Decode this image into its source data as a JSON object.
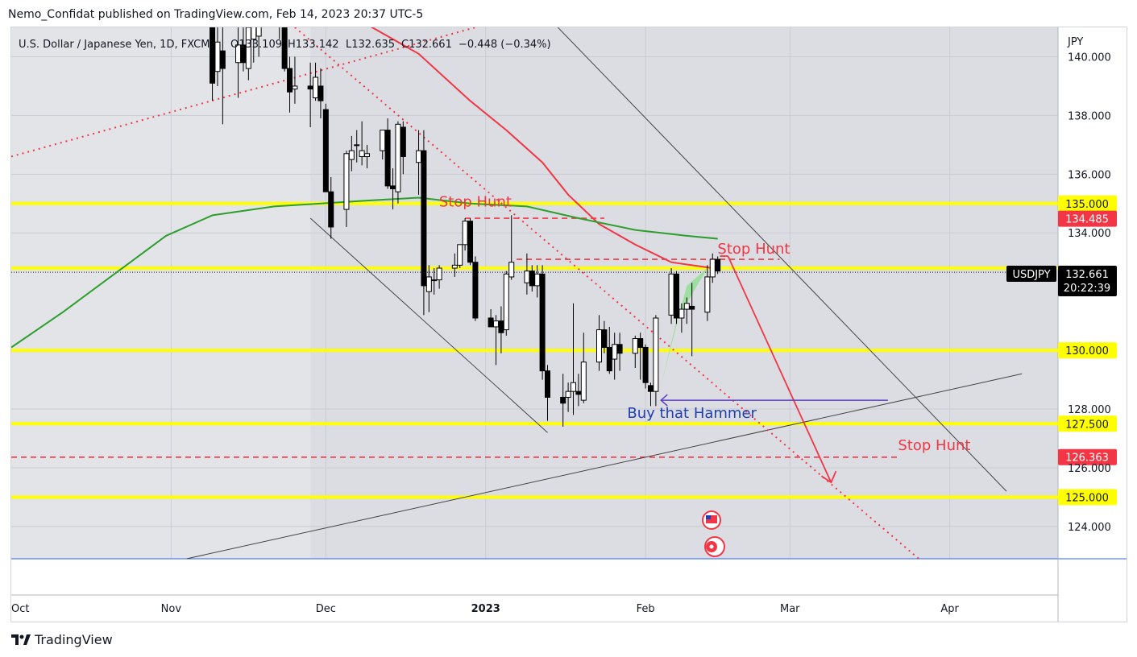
{
  "header": {
    "text": "Nemo_Confidat published on TradingView.com, Feb 14, 2023 20:37 UTC-5"
  },
  "legend": {
    "symbol_desc": "U.S. Dollar / Japanese Yen, 1D, FXCM",
    "open": "O133.109",
    "high": "H133.142",
    "low": "L132.635",
    "close": "C132.661",
    "change": "−0.448 (−0.34%)"
  },
  "currency_label": "JPY",
  "current_price": {
    "symbol": "USDJPY",
    "price": "132.661",
    "countdown": "20:22:39"
  },
  "footer": {
    "brand": "TradingView"
  },
  "colors": {
    "background": "#ffffff",
    "plot_bg": "#dcdde2",
    "yellow": "#ffff00",
    "red": "#f23645",
    "green": "#2e9e2e",
    "ma_red": "#f23645",
    "blue": "#1e3fb4",
    "candle_up": "#ffffff",
    "candle_down": "#000000",
    "purple": "#5b3fbf",
    "shadow_green": "#8ee08e"
  },
  "chart_data": {
    "type": "candlestick",
    "symbol": "USDJPY",
    "timeframe": "1D",
    "x_tick_labels": [
      "Oct",
      "Nov",
      "Dec",
      "2023",
      "Feb",
      "Mar",
      "Apr"
    ],
    "y_ticks": [
      124,
      126,
      128,
      134,
      136,
      138,
      140
    ],
    "y_tick_labels": [
      "124.000",
      "126.000",
      "128.000",
      "134.000",
      "136.000",
      "138.000",
      "140.000"
    ],
    "ylim": [
      122.9,
      141.0
    ],
    "candles": [
      {
        "d": "2022-11-09",
        "o": 146.1,
        "h": 146.8,
        "l": 138.5,
        "c": 139.1
      },
      {
        "d": "2022-11-10",
        "o": 139.5,
        "h": 141.2,
        "l": 139.0,
        "c": 140.5
      },
      {
        "d": "2022-11-11",
        "o": 140.2,
        "h": 141.4,
        "l": 137.7,
        "c": 139.6
      },
      {
        "d": "2022-11-14",
        "o": 139.8,
        "h": 141.0,
        "l": 138.6,
        "c": 140.4
      },
      {
        "d": "2022-11-15",
        "o": 140.4,
        "h": 141.0,
        "l": 139.5,
        "c": 139.8
      },
      {
        "d": "2022-11-16",
        "o": 139.6,
        "h": 141.3,
        "l": 139.2,
        "c": 141.0
      },
      {
        "d": "2022-11-17",
        "o": 140.6,
        "h": 141.5,
        "l": 139.8,
        "c": 141.1
      },
      {
        "d": "2022-11-18",
        "o": 140.7,
        "h": 141.3,
        "l": 140.0,
        "c": 141.4
      },
      {
        "d": "2022-11-21",
        "o": 141.5,
        "h": 142.4,
        "l": 141.0,
        "c": 142.1
      },
      {
        "d": "2022-11-22",
        "o": 142.0,
        "h": 142.3,
        "l": 140.6,
        "c": 141.2
      },
      {
        "d": "2022-11-23",
        "o": 141.4,
        "h": 141.6,
        "l": 139.5,
        "c": 139.6
      },
      {
        "d": "2022-11-24",
        "o": 139.6,
        "h": 140.0,
        "l": 138.1,
        "c": 138.8
      },
      {
        "d": "2022-11-25",
        "o": 138.9,
        "h": 140.0,
        "l": 138.4,
        "c": 139.0
      },
      {
        "d": "2022-11-28",
        "o": 139.0,
        "h": 139.8,
        "l": 137.6,
        "c": 138.9
      },
      {
        "d": "2022-11-29",
        "o": 138.6,
        "h": 139.8,
        "l": 138.5,
        "c": 139.3
      },
      {
        "d": "2022-11-30",
        "o": 139.0,
        "h": 139.6,
        "l": 137.9,
        "c": 138.5
      },
      {
        "d": "2022-12-01",
        "o": 138.2,
        "h": 138.4,
        "l": 135.4,
        "c": 135.4
      },
      {
        "d": "2022-12-02",
        "o": 135.4,
        "h": 135.9,
        "l": 133.8,
        "c": 134.2
      },
      {
        "d": "2022-12-05",
        "o": 134.8,
        "h": 136.8,
        "l": 134.2,
        "c": 136.7
      },
      {
        "d": "2022-12-06",
        "o": 136.5,
        "h": 137.3,
        "l": 136.1,
        "c": 136.8
      },
      {
        "d": "2022-12-07",
        "o": 137.0,
        "h": 137.5,
        "l": 136.4,
        "c": 137.0
      },
      {
        "d": "2022-12-08",
        "o": 136.6,
        "h": 137.8,
        "l": 136.3,
        "c": 136.8
      },
      {
        "d": "2022-12-09",
        "o": 136.6,
        "h": 137.0,
        "l": 136.2,
        "c": 136.7
      },
      {
        "d": "2022-12-12",
        "o": 136.8,
        "h": 137.5,
        "l": 136.5,
        "c": 137.5
      },
      {
        "d": "2022-12-13",
        "o": 137.5,
        "h": 137.9,
        "l": 135.5,
        "c": 135.6
      },
      {
        "d": "2022-12-14",
        "o": 135.6,
        "h": 136.2,
        "l": 134.8,
        "c": 135.5
      },
      {
        "d": "2022-12-15",
        "o": 135.4,
        "h": 137.8,
        "l": 135.0,
        "c": 137.7
      },
      {
        "d": "2022-12-16",
        "o": 137.6,
        "h": 137.8,
        "l": 136.0,
        "c": 136.6
      },
      {
        "d": "2022-12-19",
        "o": 136.4,
        "h": 137.5,
        "l": 135.3,
        "c": 136.8
      },
      {
        "d": "2022-12-20",
        "o": 136.8,
        "h": 137.5,
        "l": 131.2,
        "c": 132.2
      },
      {
        "d": "2022-12-21",
        "o": 132.0,
        "h": 132.9,
        "l": 131.3,
        "c": 132.5
      },
      {
        "d": "2022-12-22",
        "o": 132.4,
        "h": 132.8,
        "l": 131.9,
        "c": 132.4
      },
      {
        "d": "2022-12-23",
        "o": 132.4,
        "h": 132.9,
        "l": 132.1,
        "c": 132.8
      },
      {
        "d": "2022-12-26",
        "o": 132.8,
        "h": 133.3,
        "l": 132.5,
        "c": 132.9
      },
      {
        "d": "2022-12-27",
        "o": 132.9,
        "h": 133.6,
        "l": 132.8,
        "c": 133.6
      },
      {
        "d": "2022-12-28",
        "o": 133.6,
        "h": 134.5,
        "l": 133.4,
        "c": 134.4
      },
      {
        "d": "2022-12-29",
        "o": 134.4,
        "h": 134.5,
        "l": 132.9,
        "c": 133.0
      },
      {
        "d": "2022-12-30",
        "o": 133.0,
        "h": 133.2,
        "l": 131.0,
        "c": 131.1
      },
      {
        "d": "2023-01-02",
        "o": 131.1,
        "h": 131.4,
        "l": 130.8,
        "c": 130.8
      },
      {
        "d": "2023-01-03",
        "o": 130.8,
        "h": 131.2,
        "l": 129.5,
        "c": 131.0
      },
      {
        "d": "2023-01-04",
        "o": 131.0,
        "h": 131.5,
        "l": 129.9,
        "c": 130.6
      },
      {
        "d": "2023-01-05",
        "o": 130.7,
        "h": 132.7,
        "l": 130.5,
        "c": 132.6
      },
      {
        "d": "2023-01-06",
        "o": 132.5,
        "h": 134.6,
        "l": 132.4,
        "c": 133.0
      },
      {
        "d": "2023-01-09",
        "o": 132.3,
        "h": 133.3,
        "l": 131.9,
        "c": 132.7
      },
      {
        "d": "2023-01-10",
        "o": 132.7,
        "h": 132.9,
        "l": 132.0,
        "c": 132.2
      },
      {
        "d": "2023-01-11",
        "o": 132.2,
        "h": 132.9,
        "l": 131.8,
        "c": 132.6
      },
      {
        "d": "2023-01-12",
        "o": 132.6,
        "h": 132.9,
        "l": 129.0,
        "c": 129.3
      },
      {
        "d": "2023-01-13",
        "o": 129.3,
        "h": 129.5,
        "l": 127.6,
        "c": 128.4
      },
      {
        "d": "2023-01-16",
        "o": 128.4,
        "h": 129.2,
        "l": 127.4,
        "c": 128.2
      },
      {
        "d": "2023-01-17",
        "o": 128.4,
        "h": 128.9,
        "l": 127.9,
        "c": 128.6
      },
      {
        "d": "2023-01-18",
        "o": 128.6,
        "h": 131.6,
        "l": 127.8,
        "c": 128.9
      },
      {
        "d": "2023-01-19",
        "o": 128.6,
        "h": 129.2,
        "l": 128.1,
        "c": 128.5
      },
      {
        "d": "2023-01-20",
        "o": 128.3,
        "h": 130.6,
        "l": 128.2,
        "c": 129.6
      },
      {
        "d": "2023-01-23",
        "o": 129.6,
        "h": 131.2,
        "l": 129.3,
        "c": 130.7
      },
      {
        "d": "2023-01-24",
        "o": 130.7,
        "h": 131.0,
        "l": 129.9,
        "c": 130.1
      },
      {
        "d": "2023-01-25",
        "o": 130.1,
        "h": 130.8,
        "l": 129.2,
        "c": 129.3
      },
      {
        "d": "2023-01-26",
        "o": 129.7,
        "h": 130.6,
        "l": 129.0,
        "c": 130.2
      },
      {
        "d": "2023-01-27",
        "o": 130.2,
        "h": 130.6,
        "l": 129.3,
        "c": 129.9
      },
      {
        "d": "2023-01-30",
        "o": 129.9,
        "h": 130.5,
        "l": 129.4,
        "c": 130.4
      },
      {
        "d": "2023-01-31",
        "o": 130.4,
        "h": 130.6,
        "l": 129.0,
        "c": 130.1
      },
      {
        "d": "2023-02-01",
        "o": 130.1,
        "h": 130.2,
        "l": 128.7,
        "c": 128.9
      },
      {
        "d": "2023-02-02",
        "o": 128.8,
        "h": 128.9,
        "l": 128.1,
        "c": 128.6
      },
      {
        "d": "2023-02-03",
        "o": 128.6,
        "h": 131.2,
        "l": 128.1,
        "c": 131.1
      },
      {
        "d": "2023-02-06",
        "o": 131.2,
        "h": 132.8,
        "l": 130.9,
        "c": 132.6
      },
      {
        "d": "2023-02-07",
        "o": 132.6,
        "h": 132.7,
        "l": 130.9,
        "c": 131.1
      },
      {
        "d": "2023-02-08",
        "o": 131.1,
        "h": 131.6,
        "l": 130.6,
        "c": 131.4
      },
      {
        "d": "2023-02-09",
        "o": 131.4,
        "h": 131.8,
        "l": 130.9,
        "c": 131.6
      },
      {
        "d": "2023-02-10",
        "o": 131.5,
        "h": 132.3,
        "l": 129.8,
        "c": 131.4
      },
      {
        "d": "2023-02-13",
        "o": 131.3,
        "h": 132.9,
        "l": 131.0,
        "c": 132.5
      },
      {
        "d": "2023-02-14",
        "o": 132.5,
        "h": 133.3,
        "l": 132.3,
        "c": 133.1
      },
      {
        "d": "2023-02-15",
        "o": 133.1,
        "h": 133.2,
        "l": 132.6,
        "c": 132.7
      }
    ],
    "moving_averages": [
      {
        "name": "",
        "color": "#f23645",
        "points": [
          [
            "2022-11-11",
            142.9
          ],
          [
            "2022-11-21",
            142.5
          ],
          [
            "2022-11-30",
            141.8
          ],
          [
            "2022-12-09",
            141.1
          ],
          [
            "2022-12-19",
            140.1
          ],
          [
            "2022-12-29",
            138.5
          ],
          [
            "2023-01-05",
            137.5
          ],
          [
            "2023-01-12",
            136.4
          ],
          [
            "2023-01-17",
            135.3
          ],
          [
            "2023-01-23",
            134.3
          ],
          [
            "2023-01-30",
            133.6
          ],
          [
            "2023-02-06",
            133.0
          ],
          [
            "2023-02-14",
            132.8
          ]
        ]
      },
      {
        "name": "",
        "color": "#2e9e2e",
        "points": [
          [
            "2022-10-01",
            130.1
          ],
          [
            "2022-10-11",
            131.3
          ],
          [
            "2022-10-21",
            132.6
          ],
          [
            "2022-10-31",
            133.9
          ],
          [
            "2022-11-09",
            134.6
          ],
          [
            "2022-11-21",
            134.9
          ],
          [
            "2022-11-30",
            135.0
          ],
          [
            "2022-12-09",
            135.1
          ],
          [
            "2022-12-19",
            135.2
          ],
          [
            "2022-12-29",
            135.0
          ],
          [
            "2023-01-09",
            134.9
          ],
          [
            "2023-01-19",
            134.5
          ],
          [
            "2023-01-30",
            134.1
          ],
          [
            "2023-02-09",
            133.9
          ],
          [
            "2023-02-15",
            133.8
          ]
        ]
      }
    ],
    "horizontal_levels": [
      {
        "price": 135.0,
        "label": "135.000",
        "style": "yellow"
      },
      {
        "price": 130.0,
        "label": "130.000",
        "style": "yellow"
      },
      {
        "price": 127.5,
        "label": "127.500",
        "style": "yellow"
      },
      {
        "price": 125.0,
        "label": "125.000",
        "style": "yellow"
      },
      {
        "price": 132.8,
        "label": "",
        "style": "yellow"
      }
    ],
    "price_tags": [
      {
        "price": 134.485,
        "label": "134.485",
        "color": "#f23645"
      },
      {
        "price": 126.363,
        "label": "126.363",
        "color": "#f23645"
      }
    ],
    "annotations": [
      {
        "text": "Stop Hunt",
        "date": "2022-12-30",
        "price": 134.9,
        "color": "#f23645"
      },
      {
        "text": "Stop Hunt",
        "date": "2023-02-22",
        "price": 133.3,
        "color": "#f23645"
      },
      {
        "text": "Buy that Hammer",
        "date": "2023-02-10",
        "price": 127.7,
        "color": "#1e3fb4"
      },
      {
        "text": "Stop Hunt",
        "date": "2023-03-29",
        "price": 126.6,
        "color": "#f23645"
      }
    ],
    "dashed_levels": [
      {
        "price": 134.5,
        "from": "2022-12-28",
        "to": "2023-01-24",
        "color": "#f23645"
      },
      {
        "price": 133.1,
        "from": "2023-01-07",
        "to": "2023-02-27",
        "color": "#f23645"
      },
      {
        "price": 126.36,
        "from": "2022-10-01",
        "to": "2023-03-22",
        "color": "#f23645"
      }
    ],
    "trend_lines": [
      {
        "from": [
          "2022-11-28",
          134.5
        ],
        "to": [
          "2023-01-13",
          127.2
        ],
        "color": "#444444"
      },
      {
        "from": [
          "2023-01-15",
          141.0
        ],
        "to": [
          "2023-04-12",
          125.2
        ],
        "color": "#444444"
      },
      {
        "from": [
          "2022-11-04",
          122.9
        ],
        "to": [
          "2023-04-15",
          129.2
        ],
        "color": "#444444"
      }
    ],
    "dotted_lines": [
      {
        "from": [
          "2022-11-25",
          141.0
        ],
        "to": [
          "2023-03-26",
          122.9
        ],
        "color": "#f23645"
      },
      {
        "from": [
          "2022-10-01",
          136.6
        ],
        "to": [
          "2022-12-30",
          141.0
        ],
        "color": "#f23645"
      }
    ],
    "arrow": {
      "points": [
        [
          "2023-02-17",
          133.1
        ],
        [
          "2023-03-09",
          125.5
        ]
      ],
      "color": "#f23645"
    },
    "hammer_arrow": {
      "from": [
        "2023-03-20",
        128.3
      ],
      "to": [
        "2023-02-04",
        128.3
      ],
      "color": "#5b3fbf"
    },
    "shaded_wedge": [
      [
        "2023-02-04",
        128.8
      ],
      [
        "2023-02-07",
        131.0
      ],
      [
        "2023-02-13",
        132.8
      ],
      [
        "2023-02-09",
        132.2
      ]
    ]
  }
}
